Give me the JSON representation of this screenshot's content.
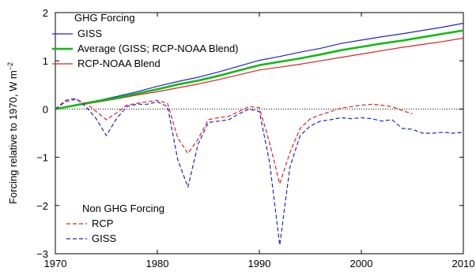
{
  "chart_data": {
    "type": "line",
    "xlim": [
      1970,
      2010
    ],
    "ylim": [
      -3,
      2
    ],
    "x_ticks": [
      1970,
      1980,
      1990,
      2000,
      2010
    ],
    "y_ticks": [
      -3,
      -2,
      -1,
      0,
      1,
      2
    ],
    "ylabel_main": "Forcing relative to 1970, W m",
    "ylabel_sup": "−2",
    "zero_line": true,
    "legends": {
      "ghg": {
        "heading": "GHG Forcing",
        "placement": "top-left"
      },
      "non_ghg": {
        "heading": "Non GHG Forcing",
        "placement": "bottom-left"
      }
    },
    "series": [
      {
        "name": "GISS",
        "group": "ghg",
        "color": "#2222cc",
        "dash": "solid",
        "x": [
          1970,
          1972,
          1974,
          1976,
          1978,
          1980,
          1982,
          1984,
          1986,
          1988,
          1990,
          1992,
          1994,
          1996,
          1998,
          2000,
          2002,
          2004,
          2006,
          2008,
          2010
        ],
        "y": [
          0.0,
          0.09,
          0.17,
          0.26,
          0.36,
          0.47,
          0.57,
          0.66,
          0.77,
          0.89,
          1.01,
          1.09,
          1.18,
          1.26,
          1.36,
          1.43,
          1.5,
          1.56,
          1.63,
          1.7,
          1.78
        ]
      },
      {
        "name": "Average (GISS; RCP-NOAA Blend)",
        "group": "ghg",
        "color": "#11bb11",
        "dash": "solid",
        "thick": true,
        "x": [
          1970,
          1972,
          1974,
          1976,
          1978,
          1980,
          1982,
          1984,
          1986,
          1988,
          1990,
          1992,
          1994,
          1996,
          1998,
          2000,
          2002,
          2004,
          2006,
          2008,
          2010
        ],
        "y": [
          0.0,
          0.08,
          0.16,
          0.23,
          0.32,
          0.41,
          0.51,
          0.59,
          0.69,
          0.8,
          0.91,
          0.98,
          1.05,
          1.13,
          1.22,
          1.29,
          1.36,
          1.42,
          1.49,
          1.56,
          1.63
        ]
      },
      {
        "name": "RCP-NOAA Blend",
        "group": "ghg",
        "color": "#dd2222",
        "dash": "solid",
        "x": [
          1970,
          1972,
          1974,
          1976,
          1978,
          1980,
          1982,
          1984,
          1986,
          1988,
          1990,
          1992,
          1994,
          1996,
          1998,
          2000,
          2002,
          2004,
          2006,
          2008,
          2010
        ],
        "y": [
          0.0,
          0.07,
          0.14,
          0.21,
          0.29,
          0.36,
          0.44,
          0.52,
          0.61,
          0.71,
          0.81,
          0.87,
          0.93,
          1.0,
          1.07,
          1.14,
          1.21,
          1.28,
          1.34,
          1.4,
          1.47
        ]
      },
      {
        "name": "RCP",
        "group": "non_ghg",
        "color": "#dd2222",
        "dash": "dashed",
        "x": [
          1970,
          1971,
          1972,
          1973,
          1974,
          1975,
          1976,
          1977,
          1978,
          1979,
          1980,
          1981,
          1982,
          1983,
          1984,
          1985,
          1986,
          1987,
          1988,
          1989,
          1990,
          1991,
          1992,
          1993,
          1994,
          1995,
          1996,
          1997,
          1998,
          1999,
          2000,
          2001,
          2002,
          2003,
          2004,
          2005
        ],
        "y": [
          0.0,
          0.15,
          0.2,
          0.12,
          -0.05,
          -0.22,
          -0.08,
          0.08,
          0.12,
          0.15,
          0.18,
          0.12,
          -0.6,
          -0.92,
          -0.62,
          -0.22,
          -0.18,
          -0.15,
          -0.05,
          0.05,
          0.03,
          -0.7,
          -1.55,
          -0.9,
          -0.4,
          -0.2,
          -0.12,
          -0.05,
          0.02,
          0.05,
          0.08,
          0.1,
          0.08,
          0.05,
          -0.03,
          -0.1
        ]
      },
      {
        "name": "GISS",
        "group": "non_ghg",
        "color": "#2222cc",
        "dash": "dashed",
        "x": [
          1970,
          1971,
          1972,
          1973,
          1974,
          1975,
          1976,
          1977,
          1978,
          1979,
          1980,
          1981,
          1982,
          1983,
          1984,
          1985,
          1986,
          1987,
          1988,
          1989,
          1990,
          1991,
          1992,
          1993,
          1994,
          1995,
          1996,
          1997,
          1998,
          1999,
          2000,
          2001,
          2002,
          2003,
          2004,
          2005,
          2006,
          2007,
          2008,
          2009,
          2010
        ],
        "y": [
          0.0,
          0.18,
          0.22,
          0.05,
          -0.2,
          -0.55,
          -0.2,
          0.05,
          0.1,
          0.1,
          0.15,
          0.05,
          -1.05,
          -1.62,
          -0.72,
          -0.28,
          -0.25,
          -0.22,
          -0.1,
          0.0,
          -0.05,
          -1.1,
          -2.82,
          -1.2,
          -0.55,
          -0.35,
          -0.25,
          -0.22,
          -0.18,
          -0.2,
          -0.18,
          -0.2,
          -0.25,
          -0.22,
          -0.4,
          -0.42,
          -0.5,
          -0.5,
          -0.48,
          -0.5,
          -0.48
        ]
      }
    ]
  }
}
